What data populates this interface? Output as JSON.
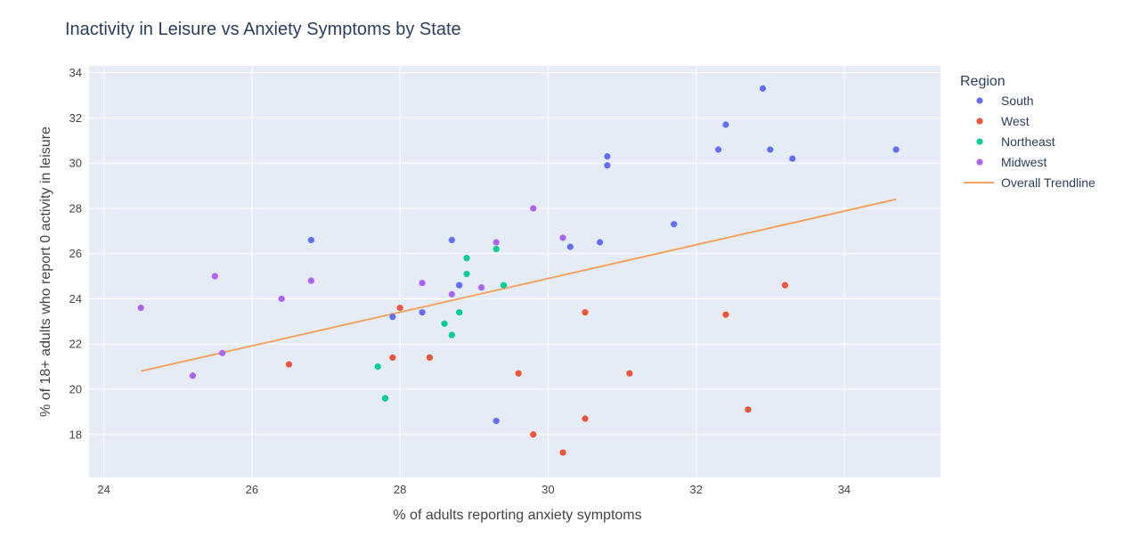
{
  "chart_data": {
    "type": "scatter",
    "title": "Inactivity in Leisure vs Anxiety Symptoms by State",
    "xlabel": "% of adults reporting anxiety symptoms",
    "ylabel": "% of 18+ adults who report 0 activity in leisure",
    "xlim": [
      23.8,
      35.3
    ],
    "ylim": [
      16.1,
      34.3
    ],
    "x_ticks": [
      24,
      26,
      28,
      30,
      32,
      34
    ],
    "y_ticks": [
      18,
      20,
      22,
      24,
      26,
      28,
      30,
      32,
      34
    ],
    "grid": true,
    "background": "#e5ecf6",
    "legend_title": "Region",
    "legend_position": "right",
    "series": [
      {
        "name": "South",
        "color": "#636efa",
        "points": [
          [
            32.9,
            33.3
          ],
          [
            32.4,
            31.7
          ],
          [
            32.3,
            30.6
          ],
          [
            33.0,
            30.6
          ],
          [
            33.3,
            30.2
          ],
          [
            34.7,
            30.6
          ],
          [
            30.8,
            30.3
          ],
          [
            30.8,
            29.9
          ],
          [
            31.7,
            27.3
          ],
          [
            30.7,
            26.5
          ],
          [
            30.3,
            26.3
          ],
          [
            26.8,
            26.6
          ],
          [
            28.7,
            26.6
          ],
          [
            28.8,
            24.6
          ],
          [
            28.3,
            23.4
          ],
          [
            27.9,
            23.2
          ],
          [
            29.3,
            18.6
          ]
        ]
      },
      {
        "name": "West",
        "color": "#ef553b",
        "points": [
          [
            33.2,
            24.6
          ],
          [
            32.4,
            23.3
          ],
          [
            32.7,
            19.1
          ],
          [
            30.5,
            23.4
          ],
          [
            31.1,
            20.7
          ],
          [
            29.6,
            20.7
          ],
          [
            30.5,
            18.7
          ],
          [
            29.8,
            18.0
          ],
          [
            30.2,
            17.2
          ],
          [
            28.0,
            23.6
          ],
          [
            27.9,
            21.4
          ],
          [
            28.4,
            21.4
          ],
          [
            26.5,
            21.1
          ]
        ]
      },
      {
        "name": "Northeast",
        "color": "#00cc96",
        "points": [
          [
            29.3,
            26.2
          ],
          [
            28.9,
            25.8
          ],
          [
            28.9,
            25.1
          ],
          [
            29.4,
            24.6
          ],
          [
            28.8,
            23.4
          ],
          [
            28.6,
            22.9
          ],
          [
            28.7,
            22.4
          ],
          [
            27.7,
            21.0
          ],
          [
            27.8,
            19.6
          ]
        ]
      },
      {
        "name": "Midwest",
        "color": "#ab63fa",
        "points": [
          [
            29.8,
            28.0
          ],
          [
            30.2,
            26.7
          ],
          [
            29.3,
            26.5
          ],
          [
            28.3,
            24.7
          ],
          [
            28.7,
            24.2
          ],
          [
            29.1,
            24.5
          ],
          [
            26.8,
            24.8
          ],
          [
            26.4,
            24.0
          ],
          [
            25.5,
            25.0
          ],
          [
            24.5,
            23.6
          ],
          [
            25.6,
            21.6
          ],
          [
            25.2,
            20.6
          ]
        ]
      }
    ],
    "trendline": {
      "name": "Overall Trendline",
      "color": "#f4a460",
      "points": [
        [
          24.5,
          20.8
        ],
        [
          34.7,
          28.4
        ]
      ]
    }
  }
}
